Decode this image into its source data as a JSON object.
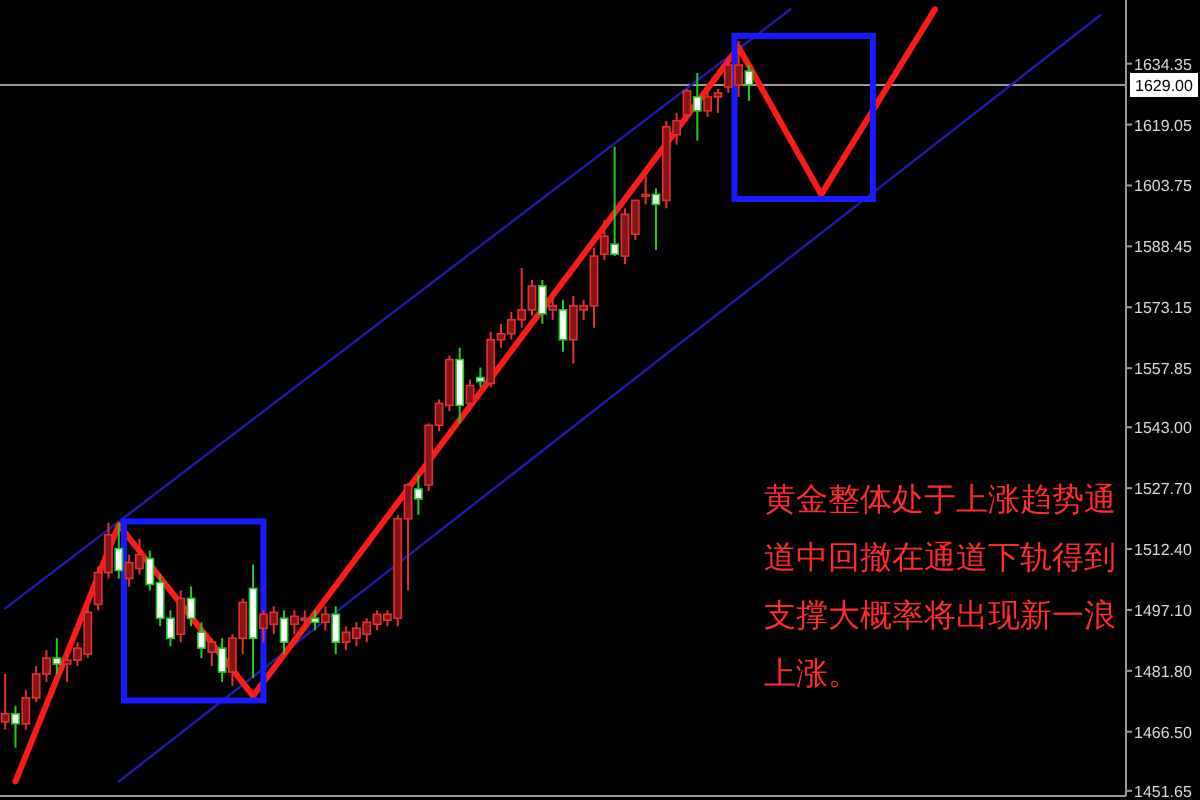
{
  "chart_data": {
    "type": "candlestick",
    "categories": [
      null,
      null,
      null,
      null,
      null,
      null,
      null,
      null,
      null,
      null,
      null,
      null,
      null,
      null,
      null,
      null,
      null,
      null,
      null,
      null,
      null,
      null,
      null,
      null,
      null,
      null,
      null,
      null,
      null,
      null,
      null,
      null,
      null,
      null,
      null,
      null,
      null,
      null,
      null,
      null,
      null,
      null,
      null,
      null,
      null,
      null,
      null,
      null,
      null,
      null,
      null,
      null,
      null,
      null,
      null,
      null,
      null,
      null,
      null,
      null,
      null,
      null,
      null,
      null,
      null,
      null,
      null,
      null,
      null,
      null,
      null,
      null,
      null,
      null,
      null,
      null,
      null,
      null,
      null,
      null,
      null,
      null,
      null,
      null,
      null,
      null,
      null,
      null,
      null,
      null,
      null,
      null,
      null,
      null,
      null,
      null,
      null,
      null,
      null,
      null,
      null,
      null,
      null,
      null,
      null,
      null,
      null,
      null,
      null
    ],
    "ohlc": [
      [
        1469,
        1481,
        1467,
        1471
      ],
      [
        1471,
        1473,
        1462.5,
        1468.5
      ],
      [
        1468.5,
        1477,
        1467,
        1475
      ],
      [
        1475,
        1483,
        1474,
        1481
      ],
      [
        1481,
        1487,
        1479,
        1485
      ],
      [
        1485,
        1490,
        1481,
        1483.5
      ],
      [
        1483.5,
        1486,
        1479,
        1484.5
      ],
      [
        1484.5,
        1489,
        1483,
        1487.5
      ],
      [
        1486,
        1498,
        1485,
        1496.5
      ],
      [
        1498.5,
        1508,
        1497,
        1506.5
      ],
      [
        1506.5,
        1519,
        1505,
        1516
      ],
      [
        1512.5,
        1519,
        1505,
        1507
      ],
      [
        1505,
        1511,
        1503,
        1509
      ],
      [
        1507.5,
        1515,
        1506,
        1511
      ],
      [
        1510,
        1512,
        1502,
        1503.5
      ],
      [
        1504,
        1506,
        1493,
        1495
      ],
      [
        1495,
        1497,
        1488,
        1490
      ],
      [
        1491,
        1502,
        1489,
        1500
      ],
      [
        1500,
        1503,
        1493,
        1495
      ],
      [
        1491.5,
        1494,
        1485,
        1487.5
      ],
      [
        1486.5,
        1490,
        1483,
        1489
      ],
      [
        1487.5,
        1490,
        1479,
        1481.5
      ],
      [
        1481.5,
        1491,
        1478,
        1490
      ],
      [
        1490,
        1500,
        1486,
        1499
      ],
      [
        1502.5,
        1508.5,
        1480,
        1490
      ],
      [
        1492.5,
        1497,
        1489,
        1496
      ],
      [
        1493.5,
        1498,
        1491,
        1496.5
      ],
      [
        1495,
        1497,
        1486,
        1489
      ],
      [
        1493.5,
        1497,
        1491,
        1495.5
      ],
      [
        1494.5,
        1497,
        1492,
        1495
      ],
      [
        1495,
        1497,
        1492,
        1494
      ],
      [
        1494,
        1498,
        1492,
        1496
      ],
      [
        1496,
        1498,
        1486,
        1489
      ],
      [
        1489,
        1493,
        1487,
        1491.5
      ],
      [
        1490,
        1494,
        1488,
        1492.5
      ],
      [
        1491,
        1495,
        1489,
        1494
      ],
      [
        1493.5,
        1497,
        1492,
        1496
      ],
      [
        1494.5,
        1497,
        1493,
        1496
      ],
      [
        1495,
        1521,
        1493,
        1520
      ],
      [
        1520,
        1529,
        1502,
        1528.5
      ],
      [
        1527.5,
        1531,
        1521,
        1525
      ],
      [
        1528.5,
        1544,
        1527,
        1543.5
      ],
      [
        1543.5,
        1550,
        1542,
        1549
      ],
      [
        1548.5,
        1561,
        1547,
        1560
      ],
      [
        1560,
        1563,
        1544,
        1548.5
      ],
      [
        1549,
        1555,
        1547,
        1553.5
      ],
      [
        1555.5,
        1558,
        1553,
        1554.5
      ],
      [
        1554,
        1567,
        1553,
        1565
      ],
      [
        1565,
        1569,
        1563,
        1566.5
      ],
      [
        1566.5,
        1572,
        1565,
        1570
      ],
      [
        1570,
        1583,
        1568,
        1572.5
      ],
      [
        1572.5,
        1580,
        1571,
        1578.5
      ],
      [
        1578.5,
        1580,
        1569,
        1571.5
      ],
      [
        1572.5,
        1577,
        1570,
        1573.5
      ],
      [
        1572.5,
        1575,
        1562,
        1565
      ],
      [
        1565,
        1576,
        1559,
        1573.5
      ],
      [
        1572.5,
        1575,
        1570,
        1573.5
      ],
      [
        1573.5,
        1588,
        1568,
        1586
      ],
      [
        1586.5,
        1595,
        1585,
        1591
      ],
      [
        1589,
        1613.5,
        1586,
        1586.5
      ],
      [
        1586,
        1598,
        1584,
        1596.5
      ],
      [
        1591.5,
        1600,
        1590,
        1600
      ],
      [
        1601,
        1606,
        1599,
        1601.5
      ],
      [
        1601.5,
        1603,
        1587.5,
        1599
      ],
      [
        1600,
        1620,
        1598,
        1618.5
      ],
      [
        1616.5,
        1622,
        1614,
        1620
      ],
      [
        1621.5,
        1628,
        1620,
        1627.5
      ],
      [
        1626,
        1632,
        1615,
        1622.5
      ],
      [
        1622.5,
        1627,
        1621,
        1626
      ],
      [
        1626,
        1628,
        1622,
        1627
      ],
      [
        1628.5,
        1635,
        1627,
        1634
      ],
      [
        1629,
        1640,
        1626,
        1634
      ],
      [
        1632.5,
        1634,
        1625,
        1629
      ],
      null,
      null,
      null,
      null,
      null,
      null,
      null,
      null,
      null,
      null,
      null,
      null,
      null,
      null,
      null,
      null,
      null,
      null,
      null,
      null,
      null,
      null,
      null,
      null,
      null,
      null,
      null,
      null,
      null,
      null,
      null,
      null,
      null,
      null,
      null,
      null
    ],
    "ylim": [
      1450.35,
      1650.35
    ],
    "yticks": [
      1634.35,
      1619.05,
      1603.75,
      1588.45,
      1573.15,
      1557.85,
      {
        "value": 1543,
        "label": "1543.00"
      },
      {
        "value": 1527.7,
        "label": "1527.70"
      },
      {
        "value": 1512.4,
        "label": "1512.40"
      },
      {
        "value": 1497.1,
        "label": "1497.10"
      },
      {
        "value": 1481.8,
        "label": "1481.80"
      },
      {
        "value": 1466.5,
        "label": "1466.50"
      },
      1451.65
    ],
    "tick_labels": "y",
    "series": [
      {
        "type": "line",
        "color": "#1c1ca8",
        "values": [
          1497.5,
          null,
          null,
          null,
          null,
          null,
          null,
          null,
          null,
          null,
          null,
          null,
          null,
          null,
          null,
          null,
          null,
          null,
          null,
          null,
          null,
          null,
          null,
          null,
          null,
          null,
          null,
          null,
          null,
          null,
          null,
          null,
          null,
          null,
          null,
          null,
          null,
          null,
          null,
          null,
          null,
          null,
          null,
          null,
          null,
          null,
          null,
          null,
          null,
          null,
          null,
          null,
          null,
          null,
          null,
          null,
          null,
          null,
          null,
          null,
          null,
          null,
          null,
          null,
          null,
          null,
          null,
          null,
          null,
          null,
          null,
          null,
          null,
          null,
          null,
          null,
          1648,
          null,
          null,
          null,
          null,
          null,
          null,
          null,
          null,
          null,
          null,
          null,
          null,
          null,
          null,
          null,
          null,
          null,
          null,
          null,
          null,
          null,
          null,
          null,
          null,
          null,
          null,
          null,
          null,
          null,
          null,
          null,
          null
        ]
      },
      {
        "type": "line",
        "color": "#1c1ca8",
        "values": [
          null,
          null,
          null,
          null,
          null,
          null,
          null,
          null,
          null,
          null,
          null,
          1454,
          null,
          null,
          null,
          null,
          null,
          null,
          null,
          null,
          null,
          null,
          null,
          null,
          null,
          null,
          null,
          null,
          null,
          null,
          null,
          null,
          null,
          null,
          null,
          null,
          null,
          null,
          null,
          null,
          null,
          null,
          null,
          null,
          null,
          null,
          null,
          null,
          null,
          null,
          null,
          null,
          null,
          null,
          null,
          null,
          null,
          null,
          null,
          null,
          null,
          null,
          null,
          null,
          null,
          null,
          null,
          null,
          null,
          null,
          null,
          null,
          null,
          null,
          null,
          null,
          null,
          null,
          null,
          null,
          null,
          null,
          null,
          null,
          null,
          null,
          null,
          null,
          null,
          null,
          null,
          null,
          null,
          null,
          null,
          null,
          null,
          null,
          null,
          null,
          null,
          null,
          null,
          null,
          null,
          null,
          1646.5,
          null,
          null
        ]
      },
      {
        "type": "line",
        "color": "#ff1a1a",
        "values": [
          null,
          1454,
          null,
          null,
          null,
          null,
          null,
          null,
          null,
          null,
          null,
          1518.5,
          null,
          null,
          null,
          null,
          null,
          null,
          null,
          null,
          null,
          null,
          null,
          null,
          1475.5,
          null,
          null,
          null,
          null,
          null,
          null,
          null,
          null,
          null,
          null,
          null,
          null,
          null,
          null,
          null,
          null,
          null,
          null,
          null,
          null,
          null,
          null,
          null,
          null,
          null,
          null,
          null,
          null,
          null,
          null,
          null,
          null,
          null,
          null,
          null,
          null,
          null,
          null,
          null,
          null,
          null,
          null,
          null,
          null,
          null,
          null,
          1638.5,
          null,
          null,
          null,
          null,
          null,
          null,
          null,
          1601.5,
          null,
          null,
          null,
          null,
          null,
          null,
          null,
          null,
          null,
          null,
          1648,
          null,
          null,
          null,
          null,
          null,
          null,
          null,
          null,
          null,
          null,
          null,
          null,
          null,
          null,
          null,
          null,
          null,
          null
        ]
      }
    ],
    "ref_lines": [
      {
        "axis": "y",
        "value": 1629.0,
        "label": "1629.00",
        "color": "#9a9a9a"
      }
    ],
    "annotations": [
      "黄金整体处于上涨趋势通道中回撤在通道下轨得到支撑大概率将出现新一浪上涨。"
    ]
  }
}
